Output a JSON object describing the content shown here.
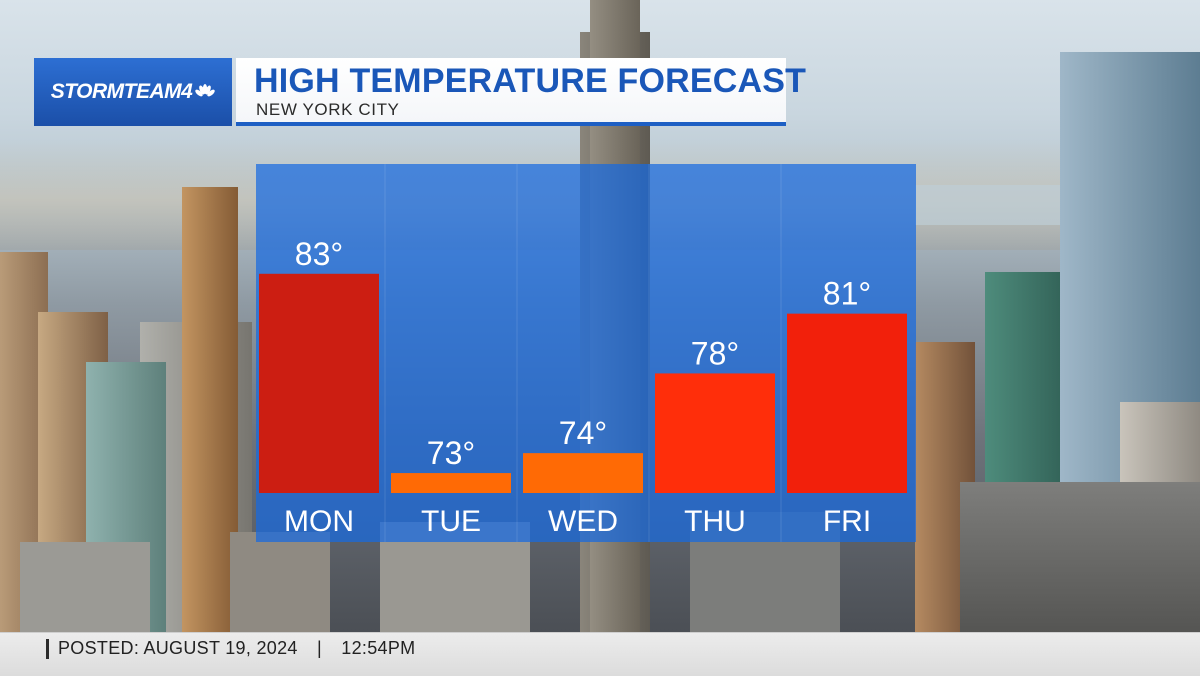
{
  "brand": {
    "logo": "STORMTEAM4",
    "logo_icon": "nbc-peacock-icon"
  },
  "header": {
    "title": "HIGH TEMPERATURE FORECAST",
    "subtitle": "NEW YORK CITY"
  },
  "chart_data": {
    "type": "bar",
    "title": "HIGH TEMPERATURE FORECAST",
    "subtitle": "NEW YORK CITY",
    "categories": [
      "MON",
      "TUE",
      "WED",
      "THU",
      "FRI"
    ],
    "values": [
      83,
      73,
      74,
      78,
      81
    ],
    "value_labels": [
      "83°",
      "73°",
      "74°",
      "78°",
      "81°"
    ],
    "xlabel": "",
    "ylabel": "",
    "ylim": [
      72,
      86
    ],
    "grid": false,
    "legend": "none",
    "colors": {
      "MON": "#cc1e12",
      "TUE": "#ff6a05",
      "WED": "#ff6a05",
      "THU": "#ff2e0a",
      "FRI": "#f2200b"
    },
    "panel_color": "#1669e1",
    "label_color": "#ffffff"
  },
  "footer": {
    "posted_label": "POSTED:",
    "posted_date": "AUGUST 19, 2024",
    "separator": "|",
    "posted_time": "12:54PM"
  }
}
